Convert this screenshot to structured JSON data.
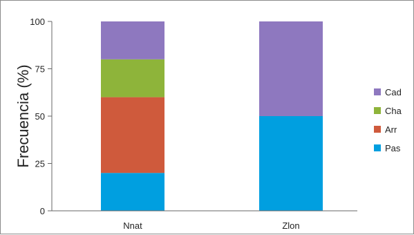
{
  "chart_data": {
    "type": "bar",
    "stacked": true,
    "title": "",
    "xlabel": "",
    "ylabel": "Frecuencia (%)",
    "ylim": [
      0,
      100
    ],
    "yticks": [
      0,
      25,
      50,
      75,
      100
    ],
    "grid": false,
    "legend_position": "right",
    "categories": [
      "Nnat",
      "Zlon"
    ],
    "series": [
      {
        "name": "Pas",
        "color": "#009fe0",
        "values": [
          20,
          50
        ]
      },
      {
        "name": "Arr",
        "color": "#cf5a3c",
        "values": [
          40,
          0
        ]
      },
      {
        "name": "Cha",
        "color": "#8eb43a",
        "values": [
          20,
          0
        ]
      },
      {
        "name": "Cad",
        "color": "#8e78bf",
        "values": [
          20,
          50
        ]
      }
    ]
  }
}
